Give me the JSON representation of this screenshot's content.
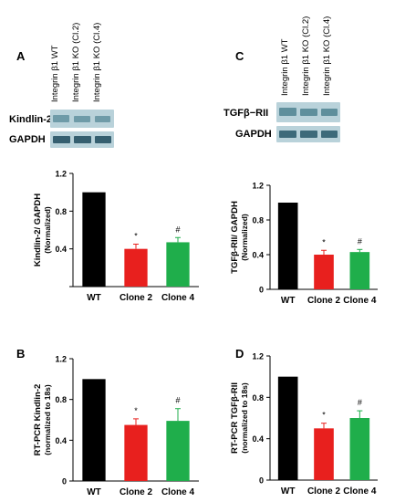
{
  "lanes": [
    "Integrin β1 WT",
    "Integrin β1 KO (Cl.2)",
    "Integrin β1 KO (Cl.4)"
  ],
  "panels": {
    "A": {
      "letter": "A",
      "bands": [
        "Kindlin-2",
        "GAPDH"
      ],
      "band_colors": [
        "#6f9ba8",
        "#355f70"
      ]
    },
    "C": {
      "letter": "C",
      "bands": [
        "TGFβ−RII",
        "GAPDH"
      ],
      "band_colors": [
        "#5f8f9c",
        "#3d6a7a"
      ]
    },
    "B": {
      "letter": "B"
    },
    "D": {
      "letter": "D"
    }
  },
  "colors": {
    "wt": "#000000",
    "clone2": "#e8201e",
    "clone4": "#1fae4b",
    "blot_bg": "#b9d2da"
  },
  "chart_data": [
    {
      "id": "chartA",
      "type": "bar",
      "categories": [
        "WT",
        "Clone 2",
        "Clone 4"
      ],
      "values": [
        1.0,
        0.4,
        0.47
      ],
      "errors": [
        0,
        0.05,
        0.05
      ],
      "annotations": [
        "",
        "*",
        "#"
      ],
      "ylabel": [
        "Kindlin-2/ GAPDH",
        "(Normalized)"
      ],
      "ylim": [
        0,
        1.2
      ],
      "yticks": [
        0,
        0.4,
        0.8,
        1.2
      ],
      "yticklabels": [
        "",
        "0.4",
        "0.8",
        "1.2"
      ]
    },
    {
      "id": "chartC",
      "type": "bar",
      "categories": [
        "WT",
        "Clone 2",
        "Clone 4"
      ],
      "values": [
        1.0,
        0.4,
        0.43
      ],
      "errors": [
        0,
        0.05,
        0.03
      ],
      "annotations": [
        "",
        "*",
        "#"
      ],
      "ylabel": [
        "TGFβ-RII/ GAPDH",
        "(Normalized)"
      ],
      "ylim": [
        0,
        1.2
      ],
      "yticks": [
        0,
        0.4,
        0.8,
        1.2
      ],
      "yticklabels": [
        "0",
        "0.4",
        "0.8",
        "1.2"
      ]
    },
    {
      "id": "chartB",
      "type": "bar",
      "categories": [
        "WT",
        "Clone 2",
        "Clone 4"
      ],
      "values": [
        1.0,
        0.55,
        0.59
      ],
      "errors": [
        0,
        0.06,
        0.12
      ],
      "annotations": [
        "",
        "*",
        "#"
      ],
      "ylabel": [
        "RT-PCR Kindlin-2",
        "(normalized to 18s)"
      ],
      "ylim": [
        0,
        1.2
      ],
      "yticks": [
        0,
        0.4,
        0.8,
        1.2
      ],
      "yticklabels": [
        "0",
        "0.4",
        "0.8",
        "1.2"
      ]
    },
    {
      "id": "chartD",
      "type": "bar",
      "categories": [
        "WT",
        "Clone 2",
        "Clone 4"
      ],
      "values": [
        1.0,
        0.5,
        0.6
      ],
      "errors": [
        0,
        0.05,
        0.07
      ],
      "annotations": [
        "",
        "*",
        "#"
      ],
      "ylabel": [
        "RT-PCR TGFβ-RII",
        "(normalized to 18s)"
      ],
      "ylim": [
        0,
        1.2
      ],
      "yticks": [
        0,
        0.4,
        0.8,
        1.2
      ],
      "yticklabels": [
        "0",
        "0.4",
        "0.8",
        "1.2"
      ]
    }
  ]
}
